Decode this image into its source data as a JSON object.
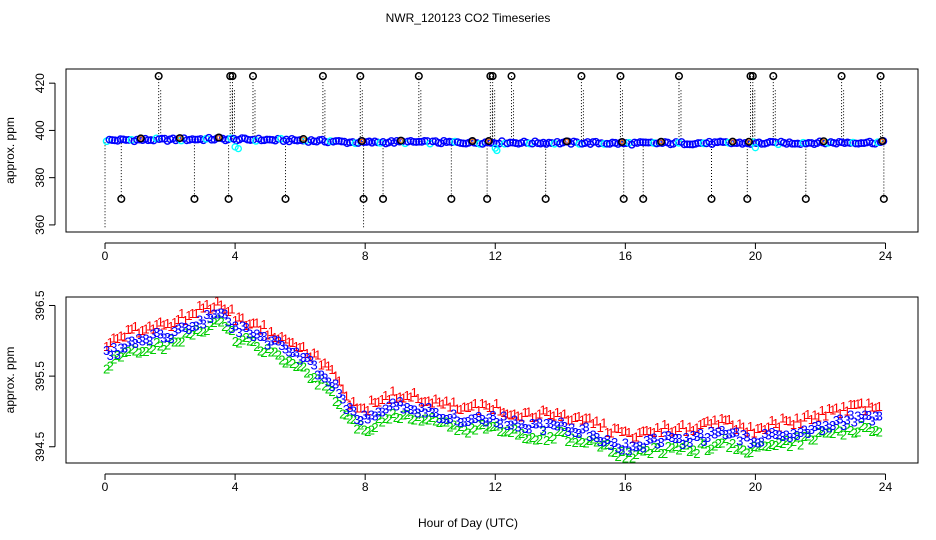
{
  "figure": {
    "title": "NWR_120123  CO2 Timeseries",
    "xlabel": "Hour of Day (UTC)"
  },
  "chart_data": [
    {
      "type": "scatter",
      "name": "top-panel",
      "ylabel": "approx. ppm",
      "xlim": [
        -1.2,
        25.0
      ],
      "ylim": [
        357,
        426
      ],
      "xticks": [
        0,
        4,
        8,
        12,
        16,
        20,
        24
      ],
      "yticks": [
        360,
        380,
        400,
        420
      ],
      "baseline": {
        "x": [
          0,
          1,
          2,
          3,
          3.5,
          4,
          5,
          6,
          7,
          7.5,
          8,
          9,
          10,
          11,
          12,
          13,
          14,
          15,
          16,
          17,
          18,
          19,
          20,
          21,
          22,
          23,
          24
        ],
        "y": [
          395.8,
          396.0,
          396.1,
          396.3,
          396.4,
          396.2,
          396.0,
          395.8,
          395.4,
          395.0,
          394.9,
          395.1,
          395.0,
          394.9,
          394.9,
          394.8,
          394.8,
          394.7,
          394.5,
          394.6,
          394.6,
          394.7,
          394.6,
          394.7,
          394.8,
          394.9,
          394.9
        ]
      },
      "spike_high_x": [
        1.65,
        3.85,
        3.92,
        4.55,
        6.7,
        7.85,
        9.65,
        11.85,
        11.92,
        12.5,
        14.65,
        15.85,
        17.65,
        19.85,
        19.92,
        20.55,
        22.65,
        23.85
      ],
      "spike_high_y": 423,
      "spike_low_x": [
        0.5,
        2.75,
        3.8,
        5.55,
        7.95,
        8.55,
        10.65,
        11.75,
        13.55,
        15.95,
        16.55,
        18.65,
        19.75,
        21.55,
        23.95
      ],
      "spike_low_y": 371,
      "mid_circles_x": [
        1.1,
        2.3,
        3.5,
        6.1,
        7.9,
        9.1,
        11.3,
        11.8,
        14.2,
        15.9,
        17.1,
        19.3,
        19.8,
        22.1,
        23.9
      ],
      "series_colors": [
        "#0000ff",
        "#00ffff",
        "#ff8000",
        "#000000"
      ]
    },
    {
      "type": "scatter",
      "name": "bottom-panel",
      "ylabel": "approx. ppm",
      "xlim": [
        -1.2,
        25.0
      ],
      "ylim": [
        394.27,
        396.62
      ],
      "xticks": [
        0,
        4,
        8,
        12,
        16,
        20,
        24
      ],
      "yticks": [
        394.5,
        395.5,
        396.5
      ],
      "xtick_labels": [
        "0",
        "4",
        "8",
        "12",
        "16",
        "20",
        "24"
      ],
      "ytick_labels": [
        "394.5",
        "395.5",
        "396.5"
      ],
      "series": [
        {
          "name": "1",
          "label": "1",
          "color": "#ff0000",
          "offset": 0.16
        },
        {
          "name": "2",
          "label": "2",
          "color": "#00cc00",
          "offset": -0.14
        },
        {
          "name": "3",
          "label": "3",
          "color": "#0000ff",
          "offset": 0.0
        }
      ],
      "x": [
        0,
        1,
        2,
        3,
        3.5,
        4,
        5,
        6,
        7,
        7.5,
        8,
        9,
        10,
        11,
        12,
        13,
        14,
        15,
        16,
        17,
        18,
        19,
        20,
        21,
        22,
        23,
        24
      ],
      "y": [
        395.8,
        396.0,
        396.1,
        396.3,
        396.4,
        396.2,
        396.0,
        395.8,
        395.4,
        395.0,
        394.9,
        395.1,
        395.0,
        394.9,
        394.9,
        394.8,
        394.8,
        394.7,
        394.5,
        394.6,
        394.6,
        394.7,
        394.6,
        394.7,
        394.8,
        394.9,
        394.9
      ],
      "x_start": 0.05,
      "x_end": 23.9,
      "x_step": 0.11
    }
  ],
  "axis_labels": {
    "top": {
      "ylabel": "approx. ppm",
      "ytick_labels": [
        "360",
        "380",
        "400",
        "420"
      ],
      "xtick_labels": [
        "0",
        "4",
        "8",
        "12",
        "16",
        "20",
        "24"
      ]
    },
    "bottom": {
      "ylabel": "approx. ppm",
      "ytick_labels": [
        "394.5",
        "395.5",
        "396.5"
      ],
      "xtick_labels": [
        "0",
        "4",
        "8",
        "12",
        "16",
        "20",
        "24"
      ]
    }
  }
}
